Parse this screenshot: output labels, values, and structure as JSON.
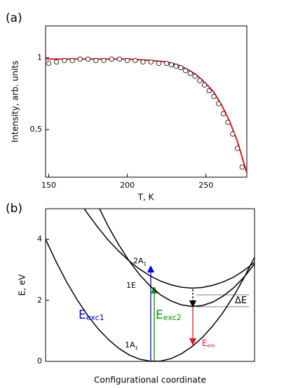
{
  "chart_data": [
    {
      "type": "scatter",
      "panel": "(a)",
      "xlabel": "T, K",
      "ylabel": "Intensity, arb. units",
      "xlim": [
        148,
        276
      ],
      "xticks": [
        150,
        200,
        250
      ],
      "ylim": [
        0.17,
        1.22
      ],
      "yticks": [
        {
          "value": 0.5,
          "label": "0,5"
        },
        1
      ],
      "series": [
        {
          "type": "scatter",
          "color": "#000000",
          "x": [
            150,
            155,
            160,
            165,
            170,
            175,
            180,
            185,
            190,
            195,
            200,
            205,
            210,
            215,
            220,
            225,
            228,
            231,
            234,
            237,
            240,
            243,
            246,
            249,
            252,
            255,
            258,
            261,
            264,
            267,
            270,
            273
          ],
          "values": [
            0.96,
            0.97,
            0.98,
            0.98,
            0.99,
            0.99,
            0.98,
            0.98,
            0.99,
            0.99,
            0.98,
            0.98,
            0.97,
            0.97,
            0.96,
            0.96,
            0.95,
            0.94,
            0.93,
            0.91,
            0.89,
            0.87,
            0.84,
            0.81,
            0.77,
            0.73,
            0.68,
            0.61,
            0.55,
            0.47,
            0.37,
            0.24
          ]
        },
        {
          "type": "line",
          "color": "#e8141e",
          "x": [
            148,
            160,
            180,
            200,
            215,
            225,
            232,
            238,
            244,
            250,
            255,
            260,
            265,
            270,
            276
          ],
          "values": [
            0.99,
            0.99,
            0.99,
            0.99,
            0.98,
            0.97,
            0.95,
            0.92,
            0.88,
            0.82,
            0.76,
            0.67,
            0.56,
            0.42,
            0.2
          ]
        }
      ]
    },
    {
      "type": "line",
      "panel": "(b)",
      "xlabel": "Configurational coordinate",
      "ylabel": "E, eV",
      "xlim": [
        0,
        10
      ],
      "ylim": [
        0,
        5
      ],
      "yticks": [
        0,
        2,
        4
      ],
      "series": [
        {
          "color": "#000000",
          "x": [
            0,
            0.5,
            1,
            1.5,
            2,
            2.5,
            3,
            3.5,
            4,
            4.5,
            5,
            5.5,
            6,
            6.5,
            7,
            7.5,
            8,
            8.5,
            9,
            9.5,
            10
          ],
          "values": [
            4.0,
            3.27,
            2.61,
            2.03,
            1.52,
            1.08,
            0.72,
            0.43,
            0.21,
            0.07,
            0.01,
            0.01,
            0.09,
            0.25,
            0.48,
            0.78,
            1.16,
            1.61,
            2.14,
            2.74,
            3.41
          ]
        },
        {
          "color": "#000000",
          "x": [
            2.5,
            3,
            3.5,
            4,
            4.5,
            5,
            5.5,
            6,
            6.5,
            7,
            7.5,
            8,
            8.5,
            9,
            9.5,
            10
          ],
          "values": [
            5.11,
            4.42,
            3.82,
            3.29,
            2.84,
            2.47,
            2.18,
            1.98,
            1.85,
            1.8,
            1.83,
            1.94,
            2.14,
            2.41,
            2.76,
            3.19
          ]
        },
        {
          "color": "#000000",
          "x": [
            1.5,
            2,
            2.5,
            3,
            3.5,
            4,
            4.5,
            5,
            5.5,
            6,
            6.5,
            7,
            7.5,
            8,
            8.5,
            9,
            9.5,
            10
          ],
          "values": [
            5.36,
            4.85,
            4.39,
            3.97,
            3.61,
            3.29,
            3.02,
            2.8,
            2.63,
            2.51,
            2.43,
            2.4,
            2.42,
            2.49,
            2.6,
            2.76,
            2.98,
            3.24
          ]
        }
      ],
      "annotations": [
        {
          "text": "2A",
          "sub": "1",
          "color": "#000000"
        },
        {
          "text": "1E",
          "color": "#000000"
        },
        {
          "text": "1A",
          "sub": "1",
          "color": "#000000"
        },
        {
          "text": "E",
          "sub": "exc1",
          "color": "#0000ff"
        },
        {
          "text": "E",
          "sub": "exc2",
          "color": "#009900"
        },
        {
          "text": "E",
          "sub": "em",
          "color": "#e8141e"
        },
        {
          "text": "ΔE",
          "color": "#000000"
        }
      ]
    }
  ]
}
